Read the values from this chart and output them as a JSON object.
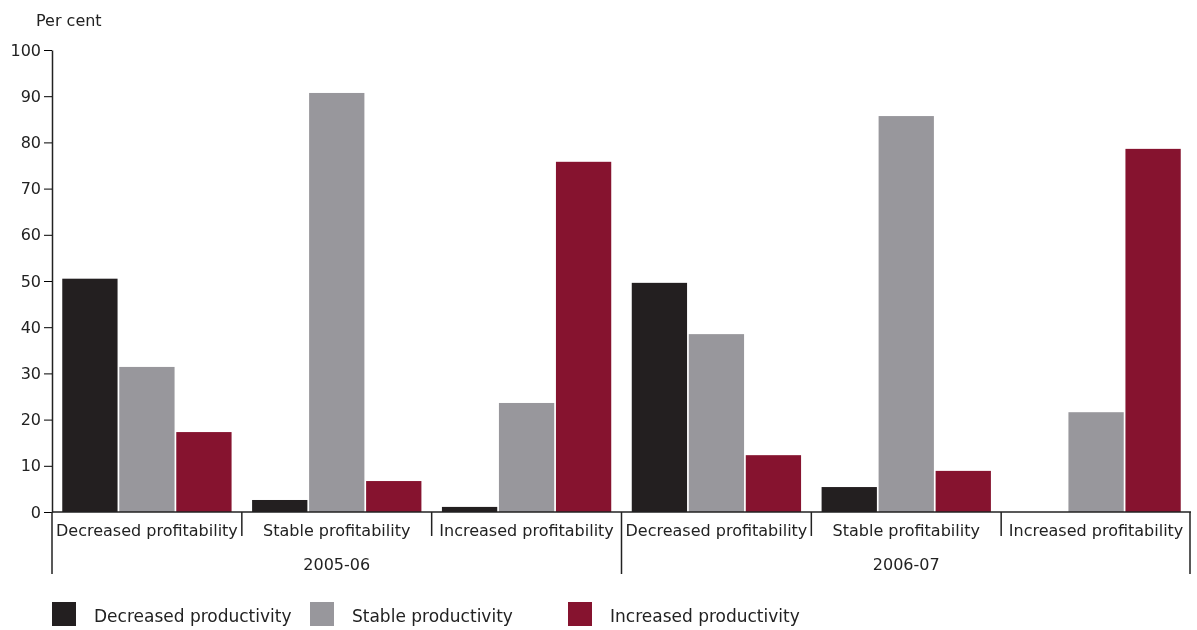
{
  "chart_data": {
    "type": "bar",
    "ylabel": "Per cent",
    "categories": [
      "Decreased profitability",
      "Stable profitability",
      "Increased profitability",
      "Decreased profitability",
      "Stable profitability",
      "Increased profitability"
    ],
    "series": [
      {
        "name": "Decreased productivity",
        "color": "#231f20",
        "values": [
          50.5,
          2.6,
          1.1,
          49.6,
          5.4,
          0
        ]
      },
      {
        "name": "Stable productivity",
        "color": "#98979c",
        "values": [
          31.4,
          90.7,
          23.6,
          38.5,
          85.7,
          21.6
        ]
      },
      {
        "name": "Increased productivity",
        "color": "#86132f",
        "values": [
          17.3,
          6.7,
          75.8,
          12.3,
          8.9,
          78.6
        ]
      }
    ],
    "ylim": [
      0,
      100
    ],
    "yticks": [
      0,
      10,
      20,
      30,
      40,
      50,
      60,
      70,
      80,
      90,
      100
    ],
    "annotations": [
      "2005-06",
      "2006-07"
    ],
    "legend": "bottom left",
    "grid": false
  }
}
